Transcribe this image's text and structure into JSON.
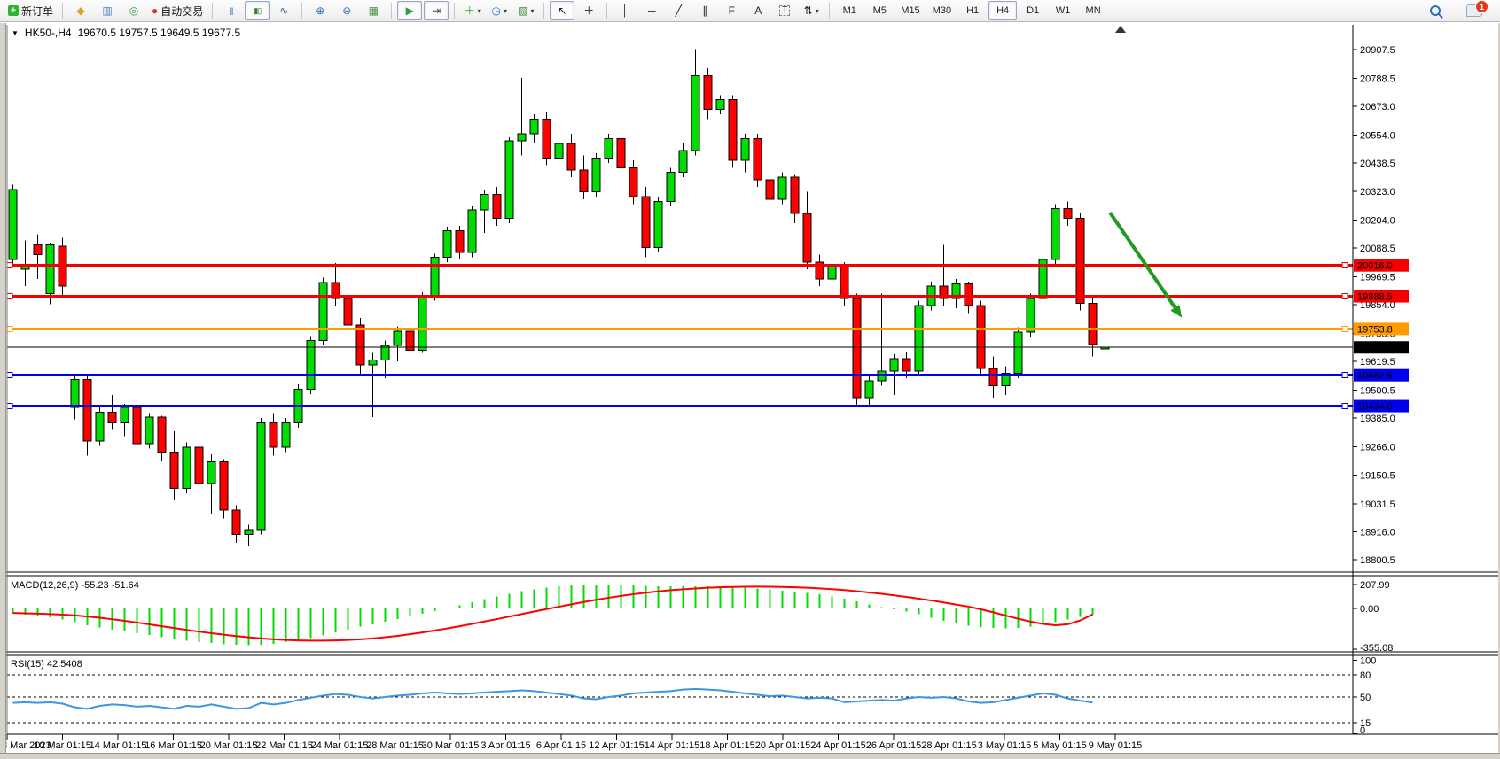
{
  "toolbar": {
    "new_order_label": "新订单",
    "auto_trading_label": "自动交易",
    "buttons": [
      {
        "name": "new-order-button",
        "icon": "doc-plus-icon",
        "label": "新订单"
      },
      {
        "sep": true
      },
      {
        "name": "market-watch-button",
        "icon": "market-watch-icon"
      },
      {
        "name": "data-window-button",
        "icon": "data-window-icon"
      },
      {
        "name": "navigator-button",
        "icon": "navigator-icon"
      },
      {
        "name": "auto-trading-button",
        "icon": "auto-trading-icon",
        "label": "自动交易"
      },
      {
        "sep": true
      },
      {
        "name": "bar-chart-button",
        "icon": "bar-chart-icon"
      },
      {
        "name": "candlestick-button",
        "icon": "candlestick-icon",
        "active": true
      },
      {
        "name": "line-chart-button",
        "icon": "line-chart-icon"
      },
      {
        "sep": true
      },
      {
        "name": "zoom-in-button",
        "icon": "zoom-in-icon"
      },
      {
        "name": "zoom-out-button",
        "icon": "zoom-out-icon"
      },
      {
        "name": "tile-windows-button",
        "icon": "tile-windows-icon"
      },
      {
        "sep": true
      },
      {
        "name": "auto-scroll-button",
        "icon": "auto-scroll-icon",
        "active": true
      },
      {
        "name": "chart-shift-button",
        "icon": "chart-shift-icon",
        "active": true
      },
      {
        "sep": true
      },
      {
        "name": "indicators-button",
        "icon": "indicators-icon",
        "dropdown": true
      },
      {
        "name": "periods-button",
        "icon": "periods-icon",
        "dropdown": true
      },
      {
        "name": "templates-button",
        "icon": "templates-icon",
        "dropdown": true
      },
      {
        "sep": true
      },
      {
        "name": "cursor-button",
        "icon": "cursor-icon",
        "active": true
      },
      {
        "name": "crosshair-button",
        "icon": "crosshair-icon"
      },
      {
        "sep": true
      },
      {
        "name": "vertical-line-button",
        "icon": "vertical-line-icon"
      },
      {
        "name": "horizontal-line-button",
        "icon": "horizontal-line-icon"
      },
      {
        "name": "trendline-button",
        "icon": "trendline-icon"
      },
      {
        "name": "channel-button",
        "icon": "channel-icon"
      },
      {
        "name": "fibonacci-button",
        "icon": "fibonacci-icon"
      },
      {
        "name": "text-button",
        "icon": "text-icon",
        "label": "A"
      },
      {
        "name": "text-label-button",
        "icon": "text-label-icon",
        "label": "T"
      },
      {
        "name": "arrows-button",
        "icon": "arrows-icon",
        "dropdown": true
      },
      {
        "sep": true
      }
    ],
    "timeframes": [
      "M1",
      "M5",
      "M15",
      "M30",
      "H1",
      "H4",
      "D1",
      "W1",
      "MN"
    ],
    "active_timeframe": "H4",
    "notification_count": "1"
  },
  "chart": {
    "symbol": "HK50-,H4",
    "ohlc": "19670.5 19757.5 19649.5 19677.5"
  },
  "chart_data": {
    "type": "candlestick",
    "symbol": "HK50-,H4",
    "timeframe": "H4",
    "title": "HK50-,H4  19670.5 19757.5 19649.5 19677.5",
    "y_axis": {
      "top_price": 20966,
      "bottom_price": 18750,
      "grid": false
    },
    "y_ticks": [
      20907.5,
      20788.5,
      20673.0,
      20554.0,
      20438.5,
      20323.0,
      20204.0,
      20088.5,
      19969.5,
      19854.0,
      19735.0,
      19619.5,
      19500.5,
      19385.0,
      19266.0,
      19150.5,
      19031.5,
      18916.0,
      18800.5
    ],
    "x_labels": [
      "8 Mar 2023",
      "10 Mar 01:15",
      "14 Mar 01:15",
      "16 Mar 01:15",
      "20 Mar 01:15",
      "22 Mar 01:15",
      "24 Mar 01:15",
      "28 Mar 01:15",
      "30 Mar 01:15",
      "3 Apr 01:15",
      "6 Apr 01:15",
      "12 Apr 01:15",
      "14 Apr 01:15",
      "18 Apr 01:15",
      "20 Apr 01:15",
      "24 Apr 01:15",
      "26 Apr 01:15",
      "28 Apr 01:15",
      "3 May 01:15",
      "5 May 01:15",
      "9 May 01:15"
    ],
    "candles": [
      [
        20040,
        20350,
        20020,
        20330
      ],
      [
        20000,
        20120,
        19930,
        20020
      ],
      [
        20100,
        20145,
        19960,
        20060
      ],
      [
        19900,
        20110,
        19855,
        20100
      ],
      [
        20095,
        20130,
        19890,
        19930
      ],
      [
        19430,
        19560,
        19380,
        19545
      ],
      [
        19545,
        19560,
        19230,
        19290
      ],
      [
        19290,
        19430,
        19270,
        19410
      ],
      [
        19410,
        19480,
        19340,
        19365
      ],
      [
        19365,
        19445,
        19310,
        19430
      ],
      [
        19430,
        19440,
        19250,
        19280
      ],
      [
        19280,
        19405,
        19260,
        19390
      ],
      [
        19390,
        19395,
        19210,
        19245
      ],
      [
        19245,
        19330,
        19050,
        19095
      ],
      [
        19095,
        19285,
        19075,
        19265
      ],
      [
        19265,
        19275,
        19080,
        19115
      ],
      [
        19115,
        19235,
        18990,
        19205
      ],
      [
        19205,
        19215,
        18970,
        19005
      ],
      [
        19005,
        19025,
        18870,
        18905
      ],
      [
        18905,
        18945,
        18855,
        18925
      ],
      [
        18925,
        19385,
        18905,
        19365
      ],
      [
        19365,
        19405,
        19230,
        19265
      ],
      [
        19265,
        19385,
        19245,
        19365
      ],
      [
        19365,
        19525,
        19345,
        19505
      ],
      [
        19505,
        19725,
        19485,
        19705
      ],
      [
        19705,
        19965,
        19685,
        19945
      ],
      [
        19945,
        20025,
        19850,
        19880
      ],
      [
        19880,
        19990,
        19740,
        19770
      ],
      [
        19770,
        19800,
        19560,
        19605
      ],
      [
        19605,
        19655,
        19390,
        19625
      ],
      [
        19625,
        19705,
        19550,
        19685
      ],
      [
        19685,
        19765,
        19620,
        19745
      ],
      [
        19745,
        19785,
        19640,
        19665
      ],
      [
        19665,
        19905,
        19655,
        19890
      ],
      [
        19890,
        20065,
        19870,
        20050
      ],
      [
        20050,
        20175,
        20030,
        20160
      ],
      [
        20160,
        20180,
        20040,
        20070
      ],
      [
        20070,
        20260,
        20050,
        20245
      ],
      [
        20245,
        20330,
        20150,
        20310
      ],
      [
        20310,
        20340,
        20180,
        20210
      ],
      [
        20210,
        20545,
        20190,
        20530
      ],
      [
        20530,
        20790,
        20470,
        20560
      ],
      [
        20560,
        20640,
        20520,
        20620
      ],
      [
        20620,
        20650,
        20430,
        20460
      ],
      [
        20460,
        20540,
        20400,
        20520
      ],
      [
        20520,
        20560,
        20380,
        20410
      ],
      [
        20410,
        20470,
        20290,
        20320
      ],
      [
        20320,
        20480,
        20300,
        20460
      ],
      [
        20460,
        20560,
        20440,
        20540
      ],
      [
        20540,
        20560,
        20390,
        20420
      ],
      [
        20420,
        20450,
        20270,
        20300
      ],
      [
        20300,
        20340,
        20050,
        20090
      ],
      [
        20090,
        20300,
        20070,
        20280
      ],
      [
        20280,
        20420,
        20260,
        20400
      ],
      [
        20400,
        20520,
        20380,
        20490
      ],
      [
        20490,
        20910,
        20470,
        20800
      ],
      [
        20800,
        20830,
        20620,
        20660
      ],
      [
        20660,
        20720,
        20640,
        20700
      ],
      [
        20700,
        20720,
        20420,
        20450
      ],
      [
        20450,
        20560,
        20400,
        20540
      ],
      [
        20540,
        20560,
        20340,
        20370
      ],
      [
        20370,
        20420,
        20250,
        20290
      ],
      [
        20290,
        20400,
        20270,
        20380
      ],
      [
        20380,
        20390,
        20190,
        20230
      ],
      [
        20230,
        20320,
        20000,
        20030
      ],
      [
        20030,
        20060,
        19930,
        19960
      ],
      [
        19960,
        20040,
        19940,
        20020
      ],
      [
        20020,
        20030,
        19850,
        19880
      ],
      [
        19880,
        19900,
        19440,
        19470
      ],
      [
        19470,
        19560,
        19430,
        19540
      ],
      [
        19540,
        19900,
        19520,
        19580
      ],
      [
        19580,
        19650,
        19480,
        19630
      ],
      [
        19630,
        19660,
        19550,
        19580
      ],
      [
        19580,
        19870,
        19560,
        19850
      ],
      [
        19850,
        19950,
        19830,
        19930
      ],
      [
        19930,
        20100,
        19850,
        19880
      ],
      [
        19880,
        19960,
        19840,
        19940
      ],
      [
        19940,
        19950,
        19820,
        19850
      ],
      [
        19850,
        19870,
        19560,
        19590
      ],
      [
        19590,
        19640,
        19470,
        19520
      ],
      [
        19520,
        19600,
        19480,
        19570
      ],
      [
        19570,
        19760,
        19550,
        19740
      ],
      [
        19740,
        19900,
        19720,
        19880
      ],
      [
        19880,
        20060,
        19860,
        20040
      ],
      [
        20040,
        20270,
        20020,
        20250
      ],
      [
        20250,
        20280,
        20180,
        20210
      ],
      [
        20210,
        20230,
        19830,
        19860
      ],
      [
        19860,
        19880,
        19640,
        19690
      ],
      [
        19670.5,
        19757.5,
        19649.5,
        19677.5
      ]
    ],
    "hlines": [
      {
        "price": 20016.0,
        "label": "20016.0",
        "color": "#f50000",
        "width": 3,
        "anchors": true
      },
      {
        "price": 19888.5,
        "label": "19888.5",
        "color": "#f50000",
        "width": 3,
        "anchors": true
      },
      {
        "price": 19753.8,
        "label": "19753.8",
        "color": "#ff9d00",
        "width": 3,
        "anchors": true
      },
      {
        "price": 19677.5,
        "label": "19677.5",
        "color": "#000000",
        "width": 1,
        "anchors": false
      },
      {
        "price": 19562.5,
        "label": "19562.5",
        "color": "#0000f0",
        "width": 3,
        "anchors": true
      },
      {
        "price": 19434.9,
        "label": "19434.9",
        "color": "#0000f0",
        "width": 3,
        "anchors": true
      }
    ],
    "arrow": {
      "from_bar": 88.4,
      "from_price": 20234,
      "to_bar": 94.2,
      "to_price": 19800,
      "color": "#229a22",
      "width": 4
    },
    "macd": {
      "label": "MACD(12,26,9) -55.23 -51.64",
      "params": "12,26,9",
      "value": -55.23,
      "signal_value": -51.64,
      "axis_ticks": [
        207.99,
        0.0,
        -355.08
      ],
      "histogram": [
        -45,
        -55,
        -65,
        -78,
        -95,
        -120,
        -145,
        -165,
        -185,
        -200,
        -215,
        -232,
        -250,
        -266,
        -280,
        -292,
        -302,
        -311,
        -318,
        -322,
        -318,
        -308,
        -294,
        -277,
        -257,
        -234,
        -209,
        -184,
        -160,
        -137,
        -114,
        -92,
        -69,
        -46,
        -22,
        3,
        28,
        54,
        80,
        105,
        128,
        149,
        167,
        182,
        193,
        200,
        205,
        208,
        207,
        204,
        200,
        196,
        193,
        191,
        191,
        193,
        194,
        192,
        188,
        182,
        174,
        165,
        156,
        146,
        135,
        122,
        106,
        86,
        62,
        36,
        12,
        -8,
        -28,
        -52,
        -80,
        -108,
        -132,
        -150,
        -163,
        -170,
        -172,
        -168,
        -158,
        -142,
        -120,
        -95,
        -73,
        -55.23
      ],
      "signal": [
        -40,
        -42,
        -45,
        -49,
        -54,
        -61,
        -70,
        -81,
        -94,
        -108,
        -123,
        -139,
        -155,
        -171,
        -187,
        -202,
        -216,
        -229,
        -241,
        -252,
        -261,
        -269,
        -275,
        -279,
        -281,
        -281,
        -279,
        -275,
        -269,
        -261,
        -251,
        -239,
        -225,
        -209,
        -192,
        -174,
        -155,
        -135,
        -114,
        -93,
        -71,
        -49,
        -27,
        -6,
        15,
        36,
        56,
        75,
        93,
        109,
        124,
        137,
        149,
        159,
        167,
        174,
        180,
        184,
        187,
        189,
        190,
        189,
        187,
        184,
        180,
        175,
        168,
        160,
        150,
        139,
        127,
        114,
        100,
        85,
        69,
        52,
        34,
        16,
        -8,
        -34,
        -62,
        -90,
        -115,
        -135,
        -147,
        -138,
        -105,
        -51.64
      ]
    },
    "rsi": {
      "label": "RSI(15) 42.5408",
      "period": 15,
      "value": 42.5408,
      "levels": [
        80,
        50,
        15
      ],
      "axis_ticks": [
        100,
        80,
        50,
        15,
        0
      ],
      "values": [
        42,
        43,
        42,
        43,
        41,
        36,
        34,
        38,
        40,
        39,
        37,
        38,
        36,
        34,
        38,
        37,
        40,
        37,
        34,
        35,
        42,
        40,
        42,
        46,
        49,
        52,
        54,
        53,
        50,
        48,
        50,
        52,
        53,
        55,
        56,
        55,
        54,
        55,
        56,
        57,
        58,
        59,
        58,
        56,
        54,
        52,
        48,
        47,
        50,
        52,
        55,
        56,
        57,
        58,
        60,
        61,
        60,
        59,
        57,
        55,
        53,
        51,
        52,
        50,
        48,
        49,
        48,
        43,
        44,
        45,
        46,
        45,
        48,
        50,
        49,
        50,
        48,
        44,
        42,
        43,
        46,
        49,
        52,
        55,
        53,
        48,
        45,
        42.54
      ]
    },
    "colors": {
      "up": "#00dd00",
      "down": "#ff0000",
      "wick": "#000000",
      "macd_histogram": "#00dd00",
      "macd_signal": "#ff0000",
      "rsi_line": "#3c96e8",
      "hline_red": "#f50000",
      "hline_orange": "#ff9d00",
      "hline_blue": "#0000f0",
      "arrow": "#229a22"
    }
  }
}
